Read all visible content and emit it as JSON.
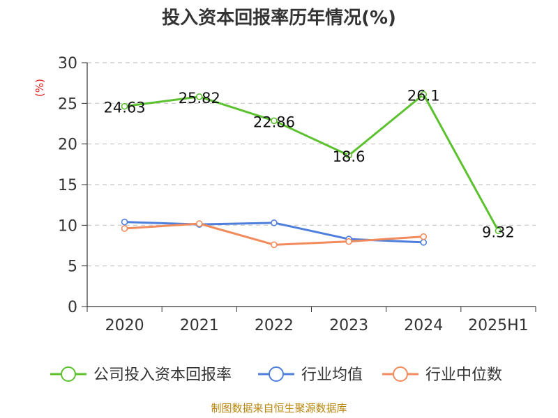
{
  "chart_data": {
    "type": "line",
    "title": "投入资本回报率历年情况(%)",
    "ylabel": "(%)",
    "xlabel": "",
    "categories": [
      "2020",
      "2021",
      "2022",
      "2023",
      "2024",
      "2025H1"
    ],
    "ylim": [
      0,
      30
    ],
    "yticks": [
      0,
      5,
      10,
      15,
      20,
      25,
      30
    ],
    "grid": true,
    "legend_position": "bottom",
    "series": [
      {
        "name": "公司投入资本回报率",
        "color": "#5cc12f",
        "values": [
          24.63,
          25.82,
          22.86,
          18.6,
          26.1,
          9.32
        ],
        "labels": [
          "24.63",
          "25.82",
          "22.86",
          "18.6",
          "26.1",
          "9.32"
        ]
      },
      {
        "name": "行业均值",
        "color": "#4e7fdc",
        "values": [
          10.4,
          10.1,
          10.3,
          8.3,
          7.9,
          null
        ]
      },
      {
        "name": "行业中位数",
        "color": "#f28b5c",
        "values": [
          9.6,
          10.2,
          7.6,
          8.0,
          8.6,
          null
        ]
      }
    ]
  },
  "source_text": "制图数据来自恒生聚源数据库"
}
